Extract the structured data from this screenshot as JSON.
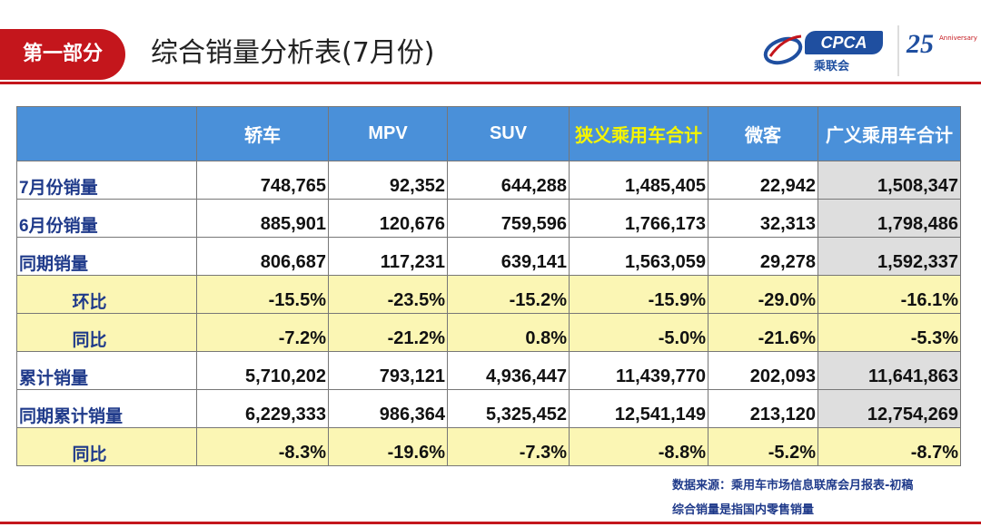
{
  "header": {
    "section_label": "第一部分",
    "title": "综合销量分析表(7月份)"
  },
  "logo": {
    "brand": "CPCA",
    "sub": "乘联会",
    "anniversary_num": "25",
    "anniversary_text": "Anniversary"
  },
  "table": {
    "columns": [
      "",
      "轿车",
      "MPV",
      "SUV",
      "狭义乘用车合计",
      "微客",
      "广义乘用车合计"
    ],
    "rows": [
      {
        "label": "7月份销量",
        "values": [
          "748,765",
          "92,352",
          "644,288",
          "1,485,405",
          "22,942",
          "1,508,347"
        ]
      },
      {
        "label": "6月份销量",
        "values": [
          "885,901",
          "120,676",
          "759,596",
          "1,766,173",
          "32,313",
          "1,798,486"
        ]
      },
      {
        "label": "同期销量",
        "values": [
          "806,687",
          "117,231",
          "639,141",
          "1,563,059",
          "29,278",
          "1,592,337"
        ]
      },
      {
        "label": "环比",
        "values": [
          "-15.5%",
          "-23.5%",
          "-15.2%",
          "-15.9%",
          "-29.0%",
          "-16.1%"
        ]
      },
      {
        "label": "同比",
        "values": [
          "-7.2%",
          "-21.2%",
          "0.8%",
          "-5.0%",
          "-21.6%",
          "-5.3%"
        ]
      },
      {
        "label": "累计销量",
        "values": [
          "5,710,202",
          "793,121",
          "4,936,447",
          "11,439,770",
          "202,093",
          "11,641,863"
        ]
      },
      {
        "label": "同期累计销量",
        "values": [
          "6,229,333",
          "986,364",
          "5,325,452",
          "12,541,149",
          "213,120",
          "12,754,269"
        ]
      },
      {
        "label": "同比",
        "values": [
          "-8.3%",
          "-19.6%",
          "-7.3%",
          "-8.8%",
          "-5.2%",
          "-8.7%"
        ]
      }
    ]
  },
  "notes": {
    "source": "数据来源：乘用车市场信息联席会月报表-初稿",
    "definition": "综合销量是指国内零售销量"
  }
}
